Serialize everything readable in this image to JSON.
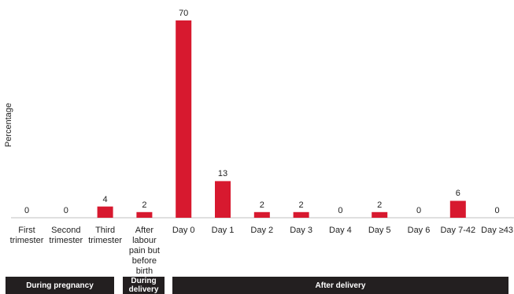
{
  "chart_data": {
    "type": "bar",
    "ylabel": "Percentage",
    "categories": [
      "First\ntrimester",
      "Second\ntrimester",
      "Third\ntrimester",
      "After\nlabour\npain but\nbefore\nbirth",
      "Day 0",
      "Day 1",
      "Day 2",
      "Day 3",
      "Day 4",
      "Day 5",
      "Day 6",
      "Day 7-42",
      "Day  ≥43"
    ],
    "values": [
      0,
      0,
      4,
      2,
      70,
      13,
      2,
      2,
      0,
      2,
      0,
      6,
      0
    ],
    "data_labels": [
      "0",
      "0",
      "4",
      "2",
      "70",
      "13",
      "2",
      "2",
      "0",
      "2",
      "0",
      "6",
      "0"
    ],
    "ylim": [
      0,
      70
    ],
    "bar_color": "#d7192f",
    "groups": [
      {
        "label": "During pregnancy",
        "from": 0,
        "to": 2
      },
      {
        "label": "During\ndelivery",
        "from": 3,
        "to": 3
      },
      {
        "label": "After delivery",
        "from": 4,
        "to": 12
      }
    ]
  },
  "colors": {
    "bar": "#d7192f",
    "group_bg": "#231f20",
    "axis": "#bfbfbf"
  }
}
